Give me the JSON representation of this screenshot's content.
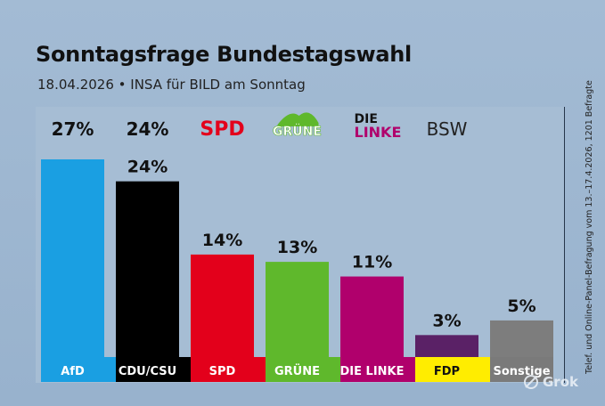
{
  "title": "Sonntagsfrage Bundestagswahl",
  "subtitle": "18.04.2026 • INSA für BILD am Sonntag",
  "side_note": "Telef. und Online-Panel-Befragung vom 13.–17.4.2026, 1201 Befragte",
  "watermark": "Grok",
  "colors": {
    "AfD": "#1a9fe2",
    "CDU/CSU": "#000000",
    "SPD": "#e3001b",
    "GRÜNE": "#5fb82c",
    "DIE LINKE": "#b0006c",
    "FDP": "#ffed00",
    "Sonstige": "#7a7a7a",
    "FDP_bar": "#5a2166",
    "Sonstige_bar": "#7d7d7d"
  },
  "top_row": [
    {
      "text": "27%",
      "style": "plain"
    },
    {
      "text": "24%",
      "style": "plain"
    },
    {
      "text": "SPD",
      "style": "spd-logo"
    },
    {
      "text": "GRÜNE",
      "style": "gruene-logo"
    },
    {
      "text_line1": "DIE",
      "text_line2": "LINKE",
      "style": "linke-logo"
    },
    {
      "text": "BSW",
      "style": "bsw-logo"
    }
  ],
  "chart_data": {
    "type": "bar",
    "title": "Sonntagsfrage Bundestagswahl",
    "subtitle": "18.04.2026 • INSA für BILD am Sonntag",
    "categories": [
      "AfD",
      "CDU/CSU",
      "SPD",
      "GRÜNE",
      "DIE LINKE",
      "FDP",
      "Sonstige"
    ],
    "values": [
      27,
      24,
      14,
      13,
      11,
      3,
      5
    ],
    "value_labels": [
      "",
      "24%",
      "14%",
      "13%",
      "11%",
      "3%",
      "5%"
    ],
    "ylim": [
      0,
      27
    ],
    "grid": false,
    "legend": "none"
  }
}
